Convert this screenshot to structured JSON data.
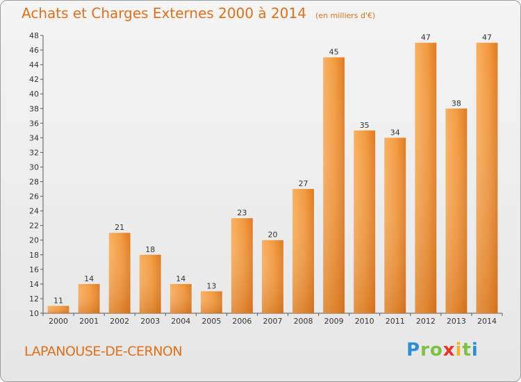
{
  "header": {
    "title": "Achats et Charges Externes 2000 à 2014",
    "subtitle": "(en milliers d'€)"
  },
  "footer": {
    "commune": "LAPANOUSE-DE-CERNON",
    "logo": {
      "p": "P",
      "r": "r",
      "o": "o",
      "x": "x",
      "i1": "i",
      "t": "t",
      "i2": "i"
    }
  },
  "colors": {
    "bar_light": "#f7a24a",
    "bar_dark": "#d9731a",
    "title": "#e0701a"
  },
  "chart_data": {
    "type": "bar",
    "title": "Achats et Charges Externes 2000 à 2014",
    "subtitle": "(en milliers d'€)",
    "categories": [
      "2000",
      "2001",
      "2002",
      "2003",
      "2004",
      "2005",
      "2006",
      "2007",
      "2008",
      "2009",
      "2010",
      "2011",
      "2012",
      "2013",
      "2014"
    ],
    "values": [
      11,
      14,
      21,
      18,
      14,
      13,
      23,
      20,
      27,
      45,
      35,
      34,
      47,
      38,
      47
    ],
    "ylim": [
      10,
      48
    ],
    "yticks": [
      10,
      12,
      14,
      16,
      18,
      20,
      22,
      24,
      26,
      28,
      30,
      32,
      34,
      36,
      38,
      40,
      42,
      44,
      46,
      48
    ],
    "grid": false,
    "legend": "none"
  }
}
